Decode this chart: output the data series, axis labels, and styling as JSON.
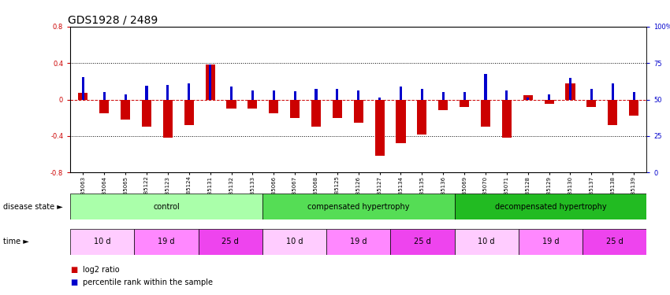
{
  "title": "GDS1928 / 2489",
  "samples": [
    "GSM85063",
    "GSM85064",
    "GSM85065",
    "GSM85122",
    "GSM85123",
    "GSM85124",
    "GSM85131",
    "GSM85132",
    "GSM85133",
    "GSM85066",
    "GSM85067",
    "GSM85068",
    "GSM85125",
    "GSM85126",
    "GSM85127",
    "GSM85134",
    "GSM85135",
    "GSM85136",
    "GSM85069",
    "GSM85070",
    "GSM85071",
    "GSM85128",
    "GSM85129",
    "GSM85130",
    "GSM85137",
    "GSM85138",
    "GSM85139"
  ],
  "log2_ratio": [
    0.07,
    -0.15,
    -0.22,
    -0.3,
    -0.42,
    -0.28,
    0.38,
    -0.1,
    -0.1,
    -0.15,
    -0.2,
    -0.3,
    -0.2,
    -0.25,
    -0.62,
    -0.48,
    -0.38,
    -0.12,
    -0.08,
    -0.3,
    -0.42,
    0.05,
    -0.05,
    0.18,
    -0.08,
    -0.28,
    -0.18
  ],
  "percentile_left_axis": [
    0.25,
    0.08,
    0.06,
    0.15,
    0.16,
    0.18,
    0.38,
    0.14,
    0.1,
    0.1,
    0.09,
    0.12,
    0.12,
    0.1,
    0.02,
    0.14,
    0.12,
    0.08,
    0.08,
    0.28,
    0.1,
    0.02,
    0.06,
    0.24,
    0.12,
    0.18,
    0.08
  ],
  "disease_state_groups": [
    {
      "label": "control",
      "start": 0,
      "end": 9,
      "color": "#AAFFAA"
    },
    {
      "label": "compensated hypertrophy",
      "start": 9,
      "end": 18,
      "color": "#55DD55"
    },
    {
      "label": "decompensated hypertrophy",
      "start": 18,
      "end": 27,
      "color": "#22BB22"
    }
  ],
  "time_groups": [
    {
      "label": "10 d",
      "start": 0,
      "end": 3,
      "color": "#FFCCFF"
    },
    {
      "label": "19 d",
      "start": 3,
      "end": 6,
      "color": "#FF88FF"
    },
    {
      "label": "25 d",
      "start": 6,
      "end": 9,
      "color": "#EE44EE"
    },
    {
      "label": "10 d",
      "start": 9,
      "end": 12,
      "color": "#FFCCFF"
    },
    {
      "label": "19 d",
      "start": 12,
      "end": 15,
      "color": "#FF88FF"
    },
    {
      "label": "25 d",
      "start": 15,
      "end": 18,
      "color": "#EE44EE"
    },
    {
      "label": "10 d",
      "start": 18,
      "end": 21,
      "color": "#FFCCFF"
    },
    {
      "label": "19 d",
      "start": 21,
      "end": 24,
      "color": "#FF88FF"
    },
    {
      "label": "25 d",
      "start": 24,
      "end": 27,
      "color": "#EE44EE"
    }
  ],
  "ylim": [
    -0.8,
    0.8
  ],
  "yticks_left": [
    -0.8,
    -0.4,
    0.0,
    0.4,
    0.8
  ],
  "yticks_right": [
    0,
    25,
    50,
    75,
    100
  ],
  "bar_color_red": "#CC0000",
  "bar_color_blue": "#0000CC",
  "zero_line_color": "#CC0000",
  "bg_color": "#FFFFFF",
  "title_fontsize": 10,
  "tick_fontsize": 6,
  "sample_fontsize": 5
}
